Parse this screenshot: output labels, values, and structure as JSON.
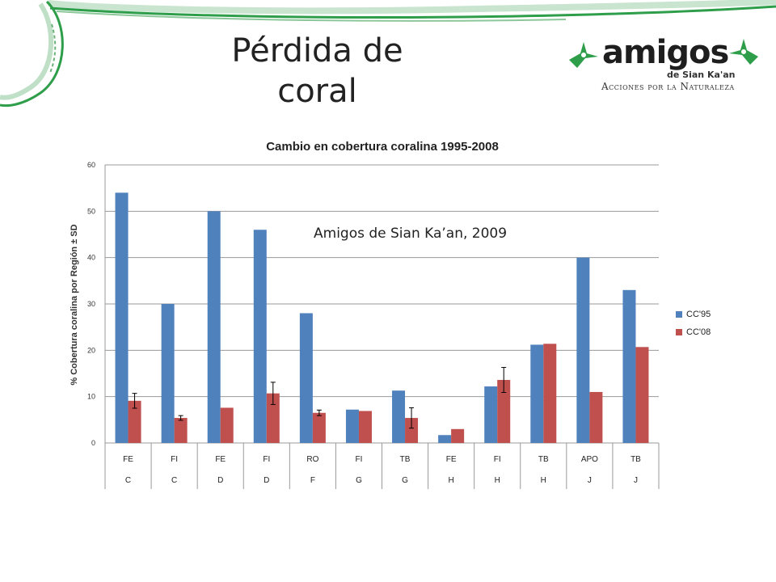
{
  "slide": {
    "title_line1": "Pérdida de",
    "title_line2": "coral"
  },
  "logo": {
    "word": "amigos",
    "sub": "de Sian Ka'an",
    "tagline": "Acciones por la Naturaleza",
    "color": "#2e9e4a"
  },
  "annotation": "Amigos de Sian Ka’an, 2009",
  "chart_data": {
    "type": "bar",
    "title": "Cambio en cobertura coralina 1995-2008",
    "ylabel": "% Cobertura coralina por Región ± SD",
    "xlabel": "",
    "ylim": [
      0,
      60
    ],
    "yticks": [
      0,
      10,
      20,
      30,
      40,
      50,
      60
    ],
    "grid": true,
    "legend_position": "right",
    "categories": [
      {
        "sub": "FE",
        "region": "C"
      },
      {
        "sub": "FI",
        "region": "C"
      },
      {
        "sub": "FE",
        "region": "D"
      },
      {
        "sub": "FI",
        "region": "D"
      },
      {
        "sub": "RO",
        "region": "F"
      },
      {
        "sub": "FI",
        "region": "G"
      },
      {
        "sub": "TB",
        "region": "G"
      },
      {
        "sub": "FE",
        "region": "H"
      },
      {
        "sub": "FI",
        "region": "H"
      },
      {
        "sub": "TB",
        "region": "H"
      },
      {
        "sub": "APO",
        "region": "J"
      },
      {
        "sub": "TB",
        "region": "J"
      }
    ],
    "series": [
      {
        "name": "CC'95",
        "color": "#4f81bd",
        "values": [
          54,
          30,
          50,
          46,
          28,
          7.2,
          11.3,
          1.7,
          12.2,
          21.2,
          40,
          33
        ],
        "errors": [
          0,
          0,
          0,
          0,
          0,
          0,
          0,
          0,
          0,
          0,
          0,
          0
        ]
      },
      {
        "name": "CC'08",
        "color": "#c0504d",
        "values": [
          9.1,
          5.4,
          7.6,
          10.7,
          6.5,
          6.9,
          5.4,
          3.0,
          13.6,
          21.4,
          11.0,
          20.7
        ],
        "errors": [
          1.6,
          0.5,
          0,
          2.4,
          0.6,
          0,
          2.2,
          0,
          2.7,
          0,
          0,
          0
        ]
      }
    ]
  }
}
